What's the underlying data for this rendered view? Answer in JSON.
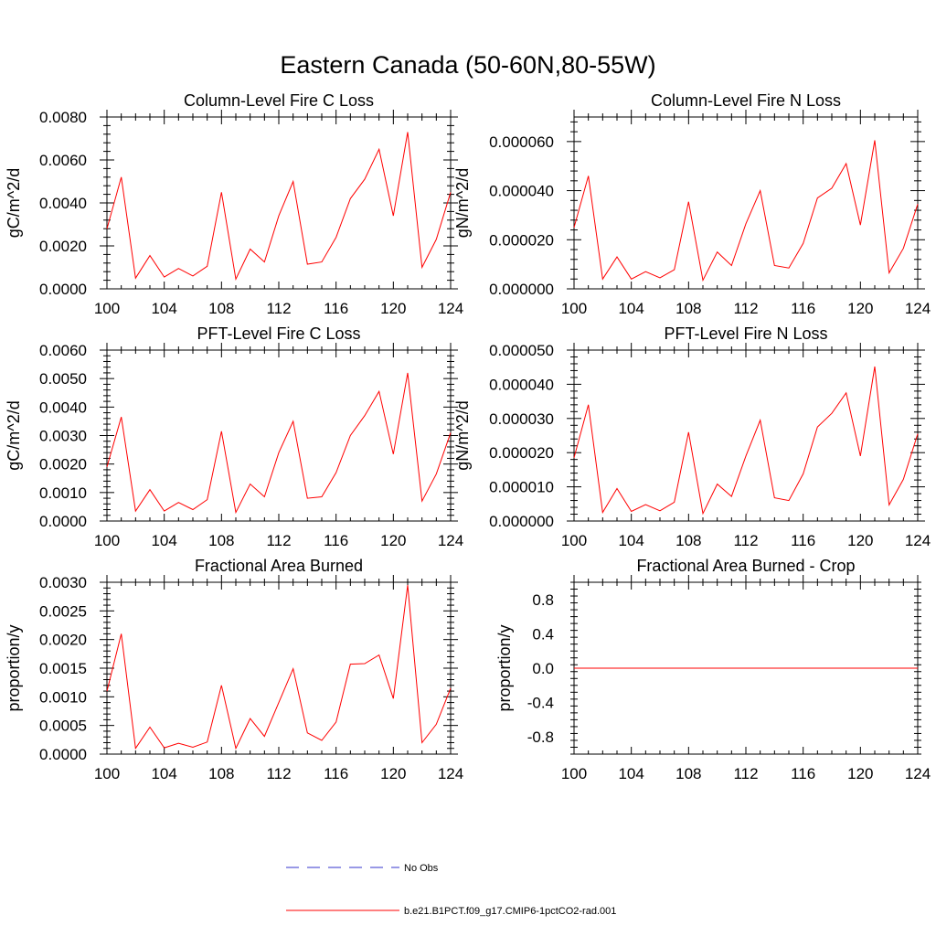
{
  "figure_title": "Eastern Canada (50-60N,80-55W)",
  "legend": {
    "items": [
      {
        "label": "No Obs",
        "color": "#3333cc",
        "style": "dashed"
      },
      {
        "label": "b.e21.B1PCT.f09_g17.CMIP6-1pctCO2-rad.001",
        "color": "#ff0000",
        "style": "solid"
      }
    ]
  },
  "chart_data": [
    {
      "type": "line",
      "title": "Column-Level Fire C Loss",
      "xlabel": "",
      "ylabel": "gC/m^2/d",
      "xlim": [
        100,
        124
      ],
      "ylim": [
        0,
        0.008
      ],
      "x_ticks": [
        "100",
        "104",
        "108",
        "112",
        "116",
        "120",
        "124"
      ],
      "y_ticks": [
        "0.0000",
        "0.0020",
        "0.0040",
        "0.0060",
        "0.0080"
      ],
      "series": [
        {
          "color": "#ff0000",
          "x": [
            100,
            101,
            102,
            103,
            104,
            105,
            106,
            107,
            108,
            109,
            110,
            111,
            112,
            113,
            114,
            115,
            116,
            117,
            118,
            119,
            120,
            121,
            122,
            123,
            124
          ],
          "values": [
            0.0028,
            0.0052,
            0.0005,
            0.00155,
            0.00055,
            0.00095,
            0.0006,
            0.00105,
            0.0045,
            0.00045,
            0.00185,
            0.00125,
            0.0034,
            0.005,
            0.00115,
            0.00125,
            0.0024,
            0.0042,
            0.0051,
            0.0065,
            0.0034,
            0.0073,
            0.001,
            0.0023,
            0.0045
          ]
        }
      ]
    },
    {
      "type": "line",
      "title": "Column-Level Fire N Loss",
      "xlabel": "",
      "ylabel": "gN/m^2/d",
      "xlim": [
        100,
        124
      ],
      "ylim": [
        0,
        7e-05
      ],
      "x_ticks": [
        "100",
        "104",
        "108",
        "112",
        "116",
        "120",
        "124"
      ],
      "y_ticks": [
        "0.000000",
        "0.000020",
        "0.000040",
        "0.000060"
      ],
      "series": [
        {
          "color": "#ff0000",
          "x": [
            100,
            101,
            102,
            103,
            104,
            105,
            106,
            107,
            108,
            109,
            110,
            111,
            112,
            113,
            114,
            115,
            116,
            117,
            118,
            119,
            120,
            121,
            122,
            123,
            124
          ],
          "values": [
            2.5e-05,
            4.6e-05,
            4e-06,
            1.3e-05,
            4e-06,
            7e-06,
            4.5e-06,
            7.8e-06,
            3.55e-05,
            3.5e-06,
            1.5e-05,
            9.5e-06,
            2.65e-05,
            4e-05,
            9.5e-06,
            8.5e-06,
            1.85e-05,
            3.7e-05,
            4.1e-05,
            5.1e-05,
            2.6e-05,
            6.05e-05,
            6.5e-06,
            1.65e-05,
            3.45e-05
          ]
        }
      ]
    },
    {
      "type": "line",
      "title": "PFT-Level Fire C Loss",
      "xlabel": "",
      "ylabel": "gC/m^2/d",
      "xlim": [
        100,
        124
      ],
      "ylim": [
        0,
        0.006
      ],
      "x_ticks": [
        "100",
        "104",
        "108",
        "112",
        "116",
        "120",
        "124"
      ],
      "y_ticks": [
        "0.0000",
        "0.0010",
        "0.0020",
        "0.0030",
        "0.0040",
        "0.0050",
        "0.0060"
      ],
      "series": [
        {
          "color": "#ff0000",
          "x": [
            100,
            101,
            102,
            103,
            104,
            105,
            106,
            107,
            108,
            109,
            110,
            111,
            112,
            113,
            114,
            115,
            116,
            117,
            118,
            119,
            120,
            121,
            122,
            123,
            124
          ],
          "values": [
            0.0019,
            0.00365,
            0.00035,
            0.0011,
            0.00035,
            0.00065,
            0.0004,
            0.00075,
            0.00315,
            0.0003,
            0.0013,
            0.00085,
            0.0024,
            0.0035,
            0.0008,
            0.00085,
            0.0017,
            0.003,
            0.0037,
            0.00455,
            0.00235,
            0.0052,
            0.0007,
            0.00165,
            0.0031
          ]
        }
      ]
    },
    {
      "type": "line",
      "title": "PFT-Level Fire N Loss",
      "xlabel": "",
      "ylabel": "gN/m^2/d",
      "xlim": [
        100,
        124
      ],
      "ylim": [
        0,
        5e-05
      ],
      "x_ticks": [
        "100",
        "104",
        "108",
        "112",
        "116",
        "120",
        "124"
      ],
      "y_ticks": [
        "0.000000",
        "0.000010",
        "0.000020",
        "0.000030",
        "0.000040",
        "0.000050"
      ],
      "series": [
        {
          "color": "#ff0000",
          "x": [
            100,
            101,
            102,
            103,
            104,
            105,
            106,
            107,
            108,
            109,
            110,
            111,
            112,
            113,
            114,
            115,
            116,
            117,
            118,
            119,
            120,
            121,
            122,
            123,
            124
          ],
          "values": [
            1.85e-05,
            3.4e-05,
            2.5e-06,
            9.5e-06,
            2.8e-06,
            4.8e-06,
            3e-06,
            5.5e-06,
            2.6e-05,
            2.2e-06,
            1.08e-05,
            7.2e-06,
            1.9e-05,
            2.95e-05,
            6.8e-06,
            6e-06,
            1.38e-05,
            2.75e-05,
            3.15e-05,
            3.75e-05,
            1.9e-05,
            4.52e-05,
            4.7e-06,
            1.22e-05,
            2.55e-05
          ]
        }
      ]
    },
    {
      "type": "line",
      "title": "Fractional Area Burned",
      "xlabel": "",
      "ylabel": "proportion/y",
      "xlim": [
        100,
        124
      ],
      "ylim": [
        0,
        0.003
      ],
      "x_ticks": [
        "100",
        "104",
        "108",
        "112",
        "116",
        "120",
        "124"
      ],
      "y_ticks": [
        "0.0000",
        "0.0005",
        "0.0010",
        "0.0015",
        "0.0020",
        "0.0025",
        "0.0030"
      ],
      "series": [
        {
          "color": "#ff0000",
          "x": [
            100,
            101,
            102,
            103,
            104,
            105,
            106,
            107,
            108,
            109,
            110,
            111,
            112,
            113,
            114,
            115,
            116,
            117,
            118,
            119,
            120,
            121,
            122,
            123,
            124
          ],
          "values": [
            0.0011,
            0.0021,
            0.0001,
            0.00047,
            0.00011,
            0.00019,
            0.00012,
            0.00021,
            0.0012,
            0.0001,
            0.00062,
            0.00031,
            0.0009,
            0.00149,
            0.00037,
            0.00024,
            0.00056,
            0.00157,
            0.00158,
            0.00173,
            0.00097,
            0.00295,
            0.0002,
            0.00052,
            0.00115
          ]
        }
      ]
    },
    {
      "type": "line",
      "title": "Fractional Area Burned - Crop",
      "xlabel": "",
      "ylabel": "proportion/y",
      "xlim": [
        100,
        124
      ],
      "ylim": [
        -1,
        1
      ],
      "x_ticks": [
        "100",
        "104",
        "108",
        "112",
        "116",
        "120",
        "124"
      ],
      "y_ticks": [
        "-0.8",
        "-0.4",
        "0.0",
        "0.4",
        "0.8"
      ],
      "series": [
        {
          "color": "#ff0000",
          "x": [
            100,
            124
          ],
          "values": [
            0,
            0
          ]
        }
      ]
    }
  ]
}
